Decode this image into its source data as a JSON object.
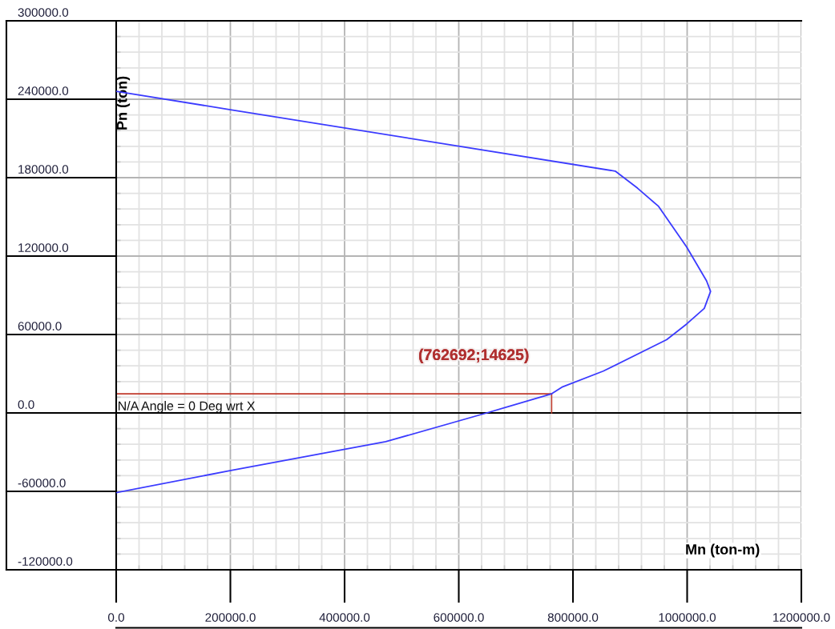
{
  "chart_data": {
    "type": "line",
    "xlabel": "Mn (ton-m)",
    "ylabel": "Pn (ton)",
    "x": [
      0,
      200000,
      874000,
      913000,
      950000,
      999000,
      1034000,
      1041000,
      1030000,
      999000,
      964000,
      853000,
      782000,
      762692,
      649000,
      472000,
      201000,
      0
    ],
    "series": [
      {
        "color": "#3b3bff",
        "values": [
          246000,
          232000,
          185000,
          172000,
          158000,
          127000,
          101000,
          93000,
          80000,
          68000,
          56000,
          32000,
          20000,
          14625,
          0,
          -22000,
          -44000,
          -61000
        ]
      }
    ],
    "xlim": [
      0,
      1200000
    ],
    "ylim": [
      -120000,
      300000
    ],
    "xticks": [
      {
        "value": 0,
        "label": "0.0"
      },
      {
        "value": 40000,
        "label": null
      },
      {
        "value": 80000,
        "label": null
      },
      {
        "value": 120000,
        "label": null
      },
      {
        "value": 160000,
        "label": null
      },
      {
        "value": 200000,
        "label": "200000.0"
      },
      {
        "value": 240000,
        "label": null
      },
      {
        "value": 280000,
        "label": null
      },
      {
        "value": 320000,
        "label": null
      },
      {
        "value": 360000,
        "label": null
      },
      {
        "value": 400000,
        "label": "400000.0"
      },
      {
        "value": 440000,
        "label": null
      },
      {
        "value": 480000,
        "label": null
      },
      {
        "value": 520000,
        "label": null
      },
      {
        "value": 560000,
        "label": null
      },
      {
        "value": 600000,
        "label": "600000.0"
      },
      {
        "value": 640000,
        "label": null
      },
      {
        "value": 680000,
        "label": null
      },
      {
        "value": 720000,
        "label": null
      },
      {
        "value": 760000,
        "label": null
      },
      {
        "value": 800000,
        "label": "800000.0"
      },
      {
        "value": 840000,
        "label": null
      },
      {
        "value": 880000,
        "label": null
      },
      {
        "value": 920000,
        "label": null
      },
      {
        "value": 960000,
        "label": null
      },
      {
        "value": 1000000,
        "label": "1000000.0"
      },
      {
        "value": 1040000,
        "label": null
      },
      {
        "value": 1080000,
        "label": null
      },
      {
        "value": 1120000,
        "label": null
      },
      {
        "value": 1160000,
        "label": null
      },
      {
        "value": 1200000,
        "label": "1200000.0"
      }
    ],
    "yticks": [
      {
        "value": -120000,
        "label": "-120000.0"
      },
      {
        "value": -108000,
        "label": null
      },
      {
        "value": -96000,
        "label": null
      },
      {
        "value": -84000,
        "label": null
      },
      {
        "value": -72000,
        "label": null
      },
      {
        "value": -60000,
        "label": "-60000.0"
      },
      {
        "value": -48000,
        "label": null
      },
      {
        "value": -36000,
        "label": null
      },
      {
        "value": -24000,
        "label": null
      },
      {
        "value": -12000,
        "label": null
      },
      {
        "value": 0,
        "label": "0.0"
      },
      {
        "value": 12000,
        "label": null
      },
      {
        "value": 24000,
        "label": null
      },
      {
        "value": 36000,
        "label": null
      },
      {
        "value": 48000,
        "label": null
      },
      {
        "value": 60000,
        "label": "60000.0"
      },
      {
        "value": 72000,
        "label": null
      },
      {
        "value": 84000,
        "label": null
      },
      {
        "value": 96000,
        "label": null
      },
      {
        "value": 108000,
        "label": null
      },
      {
        "value": 120000,
        "label": "120000.0"
      },
      {
        "value": 132000,
        "label": null
      },
      {
        "value": 144000,
        "label": null
      },
      {
        "value": 156000,
        "label": null
      },
      {
        "value": 168000,
        "label": null
      },
      {
        "value": 180000,
        "label": "180000.0"
      },
      {
        "value": 192000,
        "label": null
      },
      {
        "value": 204000,
        "label": null
      },
      {
        "value": 216000,
        "label": null
      },
      {
        "value": 228000,
        "label": null
      },
      {
        "value": 240000,
        "label": "240000.0"
      },
      {
        "value": 252000,
        "label": null
      },
      {
        "value": 264000,
        "label": null
      },
      {
        "value": 276000,
        "label": null
      },
      {
        "value": 288000,
        "label": null
      },
      {
        "value": 300000,
        "label": "300000.0"
      }
    ],
    "grid": true,
    "marker": "none",
    "line_style": "solid",
    "ref_lines": [
      {
        "axis": "y",
        "value": 0,
        "label": "N/A Angle = 0 Deg wrt X",
        "color": "#000000"
      }
    ],
    "annotations": [
      {
        "text": "(762692;14625)",
        "x": 762692,
        "y": 14625
      }
    ]
  }
}
